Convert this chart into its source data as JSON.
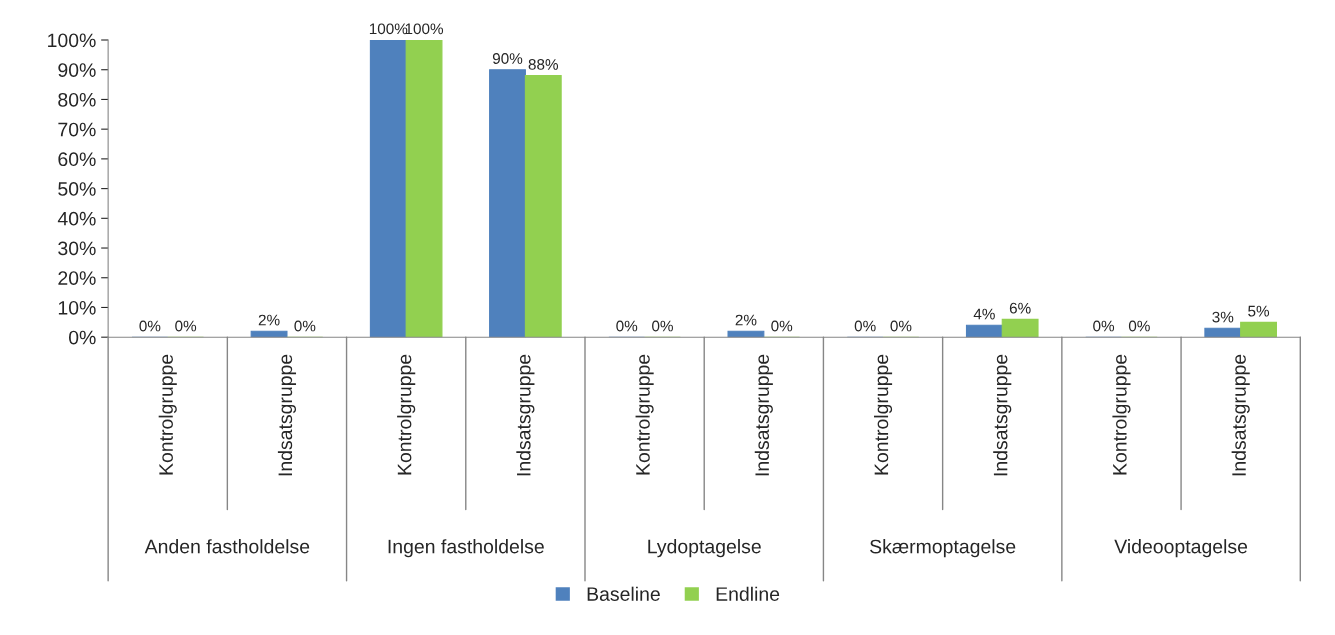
{
  "chart_data": {
    "type": "bar",
    "categories": [
      "Kontrolgruppe",
      "Indsatsgruppe",
      "Kontrolgruppe",
      "Indsatsgruppe",
      "Kontrolgruppe",
      "Indsatsgruppe",
      "Kontrolgruppe",
      "Indsatsgruppe",
      "Kontrolgruppe",
      "Indsatsgruppe"
    ],
    "series": [
      {
        "name": "Baseline",
        "color": "#4f81bd",
        "values": [
          0,
          2,
          100,
          90,
          0,
          2,
          0,
          4,
          0,
          3
        ],
        "value_labels": [
          "0%",
          "2%",
          "100%",
          "90%",
          "0%",
          "2%",
          "0%",
          "4%",
          "0%",
          "3%"
        ]
      },
      {
        "name": "Endline",
        "color": "#92d050",
        "values": [
          0,
          0,
          100,
          88,
          0,
          0,
          0,
          6,
          0,
          5
        ],
        "value_labels": [
          "0%",
          "0%",
          "100%",
          "88%",
          "0%",
          "0%",
          "0%",
          "6%",
          "0%",
          "5%"
        ]
      }
    ],
    "annotations": [
      "Anden fastholdelse",
      "Ingen fastholdelse",
      "Lydoptagelse",
      "Skærmoptagelse",
      "Videooptagelse"
    ],
    "ylim": [
      0,
      100
    ],
    "yticks": [
      {
        "value": 0,
        "label": "0%"
      },
      {
        "value": 10,
        "label": "10%"
      },
      {
        "value": 20,
        "label": "20%"
      },
      {
        "value": 30,
        "label": "30%"
      },
      {
        "value": 40,
        "label": "40%"
      },
      {
        "value": 50,
        "label": "50%"
      },
      {
        "value": 60,
        "label": "60%"
      },
      {
        "value": 70,
        "label": "70%"
      },
      {
        "value": 80,
        "label": "80%"
      },
      {
        "value": 90,
        "label": "90%"
      },
      {
        "value": 100,
        "label": "100%"
      }
    ],
    "grid": false,
    "legend": "bottom"
  }
}
